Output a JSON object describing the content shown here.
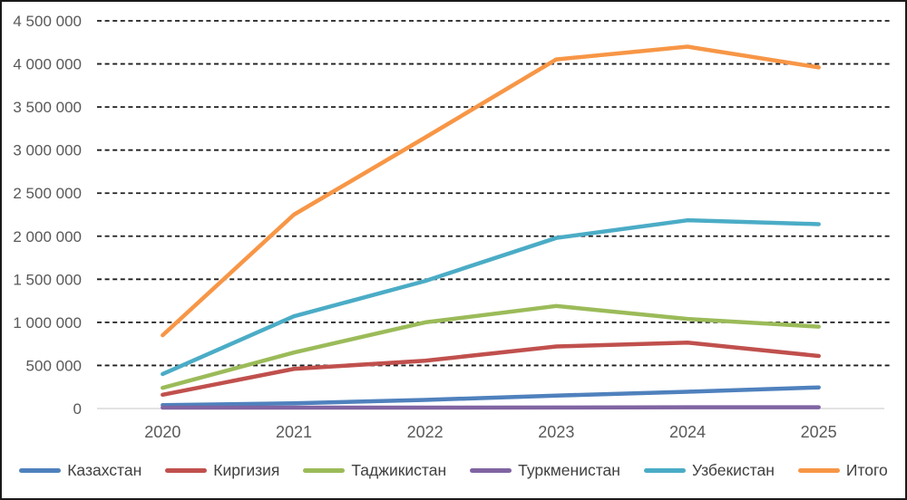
{
  "chart_data": {
    "type": "line",
    "title": "",
    "xlabel": "",
    "ylabel": "",
    "categories": [
      "2020",
      "2021",
      "2022",
      "2023",
      "2024",
      "2025"
    ],
    "series": [
      {
        "key": "kazakhstan",
        "name": "Казахстан",
        "color": "#4F81BD",
        "values": [
          40000,
          60000,
          100000,
          150000,
          195000,
          245000
        ]
      },
      {
        "key": "kirgiziya",
        "name": "Киргизия",
        "color": "#C0504D",
        "values": [
          160000,
          460000,
          555000,
          720000,
          765000,
          610000
        ]
      },
      {
        "key": "tadzhikistan",
        "name": "Таджикистан",
        "color": "#9BBB59",
        "values": [
          240000,
          650000,
          1000000,
          1190000,
          1040000,
          950000
        ]
      },
      {
        "key": "turkmenistan",
        "name": "Туркменистан",
        "color": "#8064A2",
        "values": [
          10000,
          10000,
          10000,
          12000,
          15000,
          15000
        ]
      },
      {
        "key": "uzbekistan",
        "name": "Узбекистан",
        "color": "#4BACC6",
        "values": [
          400000,
          1070000,
          1480000,
          1980000,
          2185000,
          2140000
        ]
      },
      {
        "key": "itogo",
        "name": "Итого",
        "color": "#F79646",
        "values": [
          850000,
          2250000,
          3145000,
          4052000,
          4200000,
          3960000
        ]
      }
    ],
    "ylim": [
      0,
      4500000
    ],
    "yticks": [
      {
        "value": 0,
        "label": "0"
      },
      {
        "value": 500000,
        "label": "500 000"
      },
      {
        "value": 1000000,
        "label": "1 000 000"
      },
      {
        "value": 1500000,
        "label": "1 500 000"
      },
      {
        "value": 2000000,
        "label": "2 000 000"
      },
      {
        "value": 2500000,
        "label": "2 500 000"
      },
      {
        "value": 3000000,
        "label": "3 000 000"
      },
      {
        "value": 3500000,
        "label": "3 500 000"
      },
      {
        "value": 4000000,
        "label": "4 000 000"
      },
      {
        "value": 4500000,
        "label": "4 500 000"
      }
    ],
    "grid": "horizontal-dashed",
    "legend_position": "bottom",
    "style": {
      "grid_color": "#1f1f1f",
      "zero_axis_color": "#d9d9d9",
      "tick_label_color": "#595959",
      "legend_text_color": "#404040",
      "line_width": 4.5,
      "background": "#ffffff",
      "border_color": "#1a1a1a"
    }
  }
}
